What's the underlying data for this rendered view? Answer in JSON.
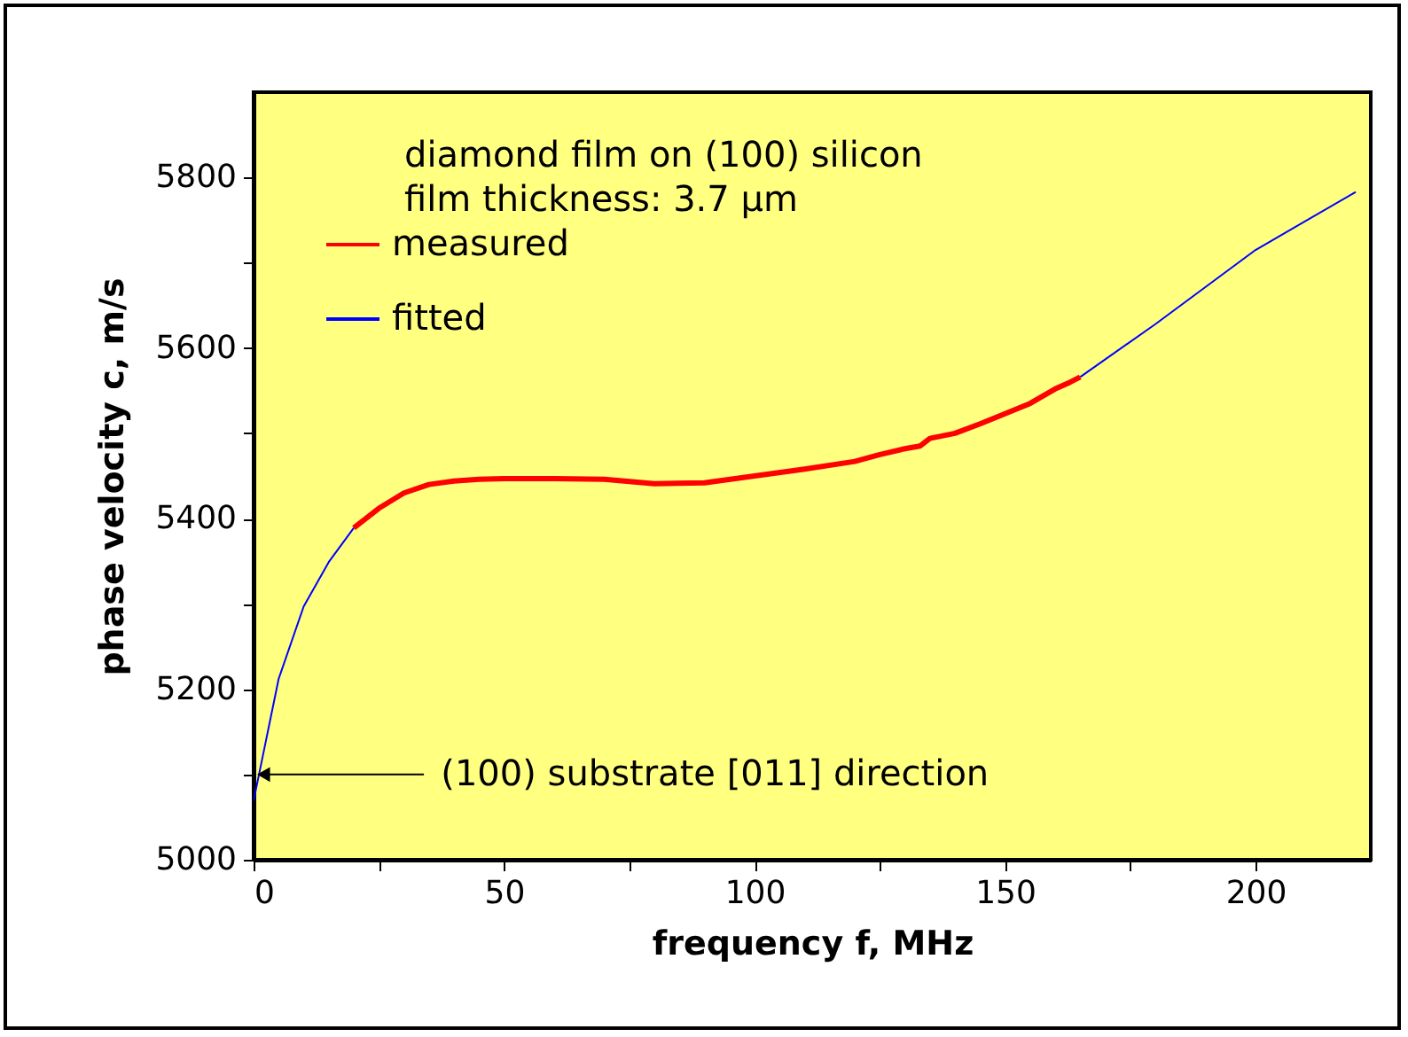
{
  "chart_data": {
    "type": "line",
    "xlabel": "frequency f, MHz",
    "ylabel": "phase velocity c, m/s",
    "xlim": [
      0,
      223
    ],
    "xticks": [
      0,
      {
        "value": 25,
        "label": null
      },
      50,
      {
        "value": 75,
        "label": null
      },
      100,
      {
        "value": 125,
        "label": null
      },
      150,
      {
        "value": 175,
        "label": null
      },
      200
    ],
    "ylim": [
      5000,
      5900
    ],
    "yticks": [
      5000,
      {
        "value": 5100,
        "label": null
      },
      5200,
      {
        "value": 5300,
        "label": null
      },
      5400,
      {
        "value": 5500,
        "label": null
      },
      5600,
      {
        "value": 5700,
        "label": null
      },
      5800
    ],
    "grid": false,
    "legend": "top left",
    "marker": "none",
    "line_style": "solid",
    "series": [
      {
        "name": "measured",
        "color": "#ff0000",
        "x": [
          20,
          25,
          30,
          35,
          40,
          45,
          50,
          60,
          70,
          80,
          90,
          100,
          110,
          120,
          125,
          130,
          133,
          135,
          140,
          145,
          150,
          155,
          160,
          163,
          165
        ],
        "values": [
          5389,
          5412,
          5430,
          5440,
          5444,
          5446,
          5447,
          5447,
          5446,
          5441,
          5442,
          5450,
          5458,
          5467,
          5475,
          5482,
          5485,
          5494,
          5500,
          5511,
          5523,
          5535,
          5552,
          5560,
          5566
        ]
      },
      {
        "name": "fitted",
        "color": "#0000ff",
        "x": [
          0,
          5,
          10,
          15,
          20,
          90,
          165,
          180,
          200,
          220
        ],
        "values": [
          5069,
          5212,
          5297,
          5349,
          5389,
          null,
          5566,
          5628,
          5715,
          5783
        ]
      }
    ],
    "annotations": [
      "diamond film on (100) silicon",
      "film thickness: 3.7 µm",
      {
        "text": "(100) substrate [011] direction",
        "x": 2,
        "y": 5100
      }
    ]
  }
}
